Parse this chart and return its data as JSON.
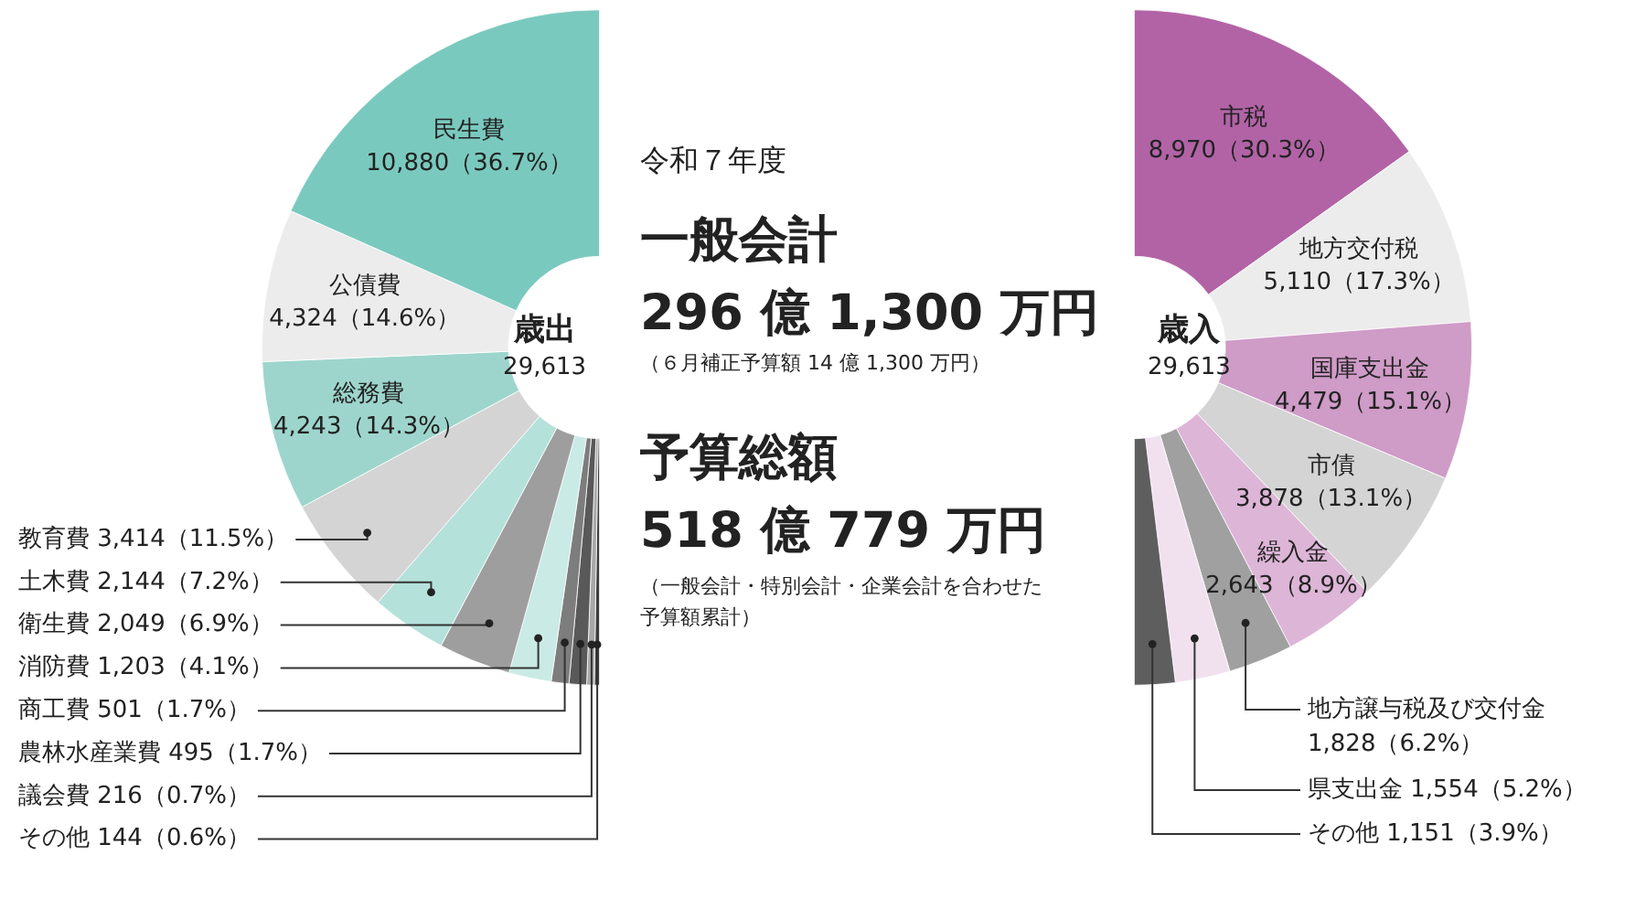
{
  "chart_data": [
    {
      "type": "donut",
      "title": "歳出",
      "annotations": [
        "29,613"
      ],
      "categories": [
        "民生費",
        "公債費",
        "総務費",
        "教育費",
        "土木費",
        "衛生費",
        "消防費",
        "商工費",
        "農林水産業費",
        "議会費",
        "その他"
      ],
      "values": [
        10880,
        4324,
        4243,
        3414,
        2144,
        2049,
        1203,
        501,
        495,
        216,
        144
      ],
      "value_labels": [
        "10,880（36.7%）",
        "4,324（14.6%）",
        "4,243（14.3%）",
        "3,414（11.5%）",
        "2,144（7.2%）",
        "2,049（6.9%）",
        "1,203（4.1%）",
        "501（1.7%）",
        "495（1.7%）",
        "216（0.7%）",
        "144（0.6%）"
      ],
      "colors": [
        "#7ac9be",
        "#ececec",
        "#9dd5cc",
        "#d4d4d4",
        "#b5e1db",
        "#9e9e9e",
        "#c9eae5",
        "#7d7d7d",
        "#595959",
        "#a8a8a8",
        "#3c3c3c"
      ]
    },
    {
      "type": "donut",
      "title": "歳入",
      "annotations": [
        "29,613"
      ],
      "categories": [
        "市税",
        "地方交付税",
        "国庫支出金",
        "市債",
        "繰入金",
        "地方譲与税及び交付金",
        "県支出金",
        "その他"
      ],
      "values": [
        8970,
        5110,
        4479,
        3878,
        2643,
        1828,
        1554,
        1151
      ],
      "value_labels": [
        "8,970（30.3%）",
        "5,110（17.3%）",
        "4,479（15.1%）",
        "3,878（13.1%）",
        "2,643（8.9%）",
        "1,828（6.2%）",
        "1,554（5.2%）",
        "1,151（3.9%）"
      ],
      "colors": [
        "#b263a6",
        "#ececec",
        "#cf9bc7",
        "#d4d4d4",
        "#ddb5d7",
        "#a0a0a0",
        "#f1e1ef",
        "#5e5e5e"
      ]
    },
    {
      "type": "other",
      "annotations": [
        "令和７年度",
        "一般会計",
        "296 億 1,300 万円",
        "（６月補正予算額 14 億 1,300 万円）",
        "予算総額",
        "518 億 779 万円",
        "（一般会計・特別会計・企業会計を合わせた予算額累計）"
      ]
    }
  ]
}
